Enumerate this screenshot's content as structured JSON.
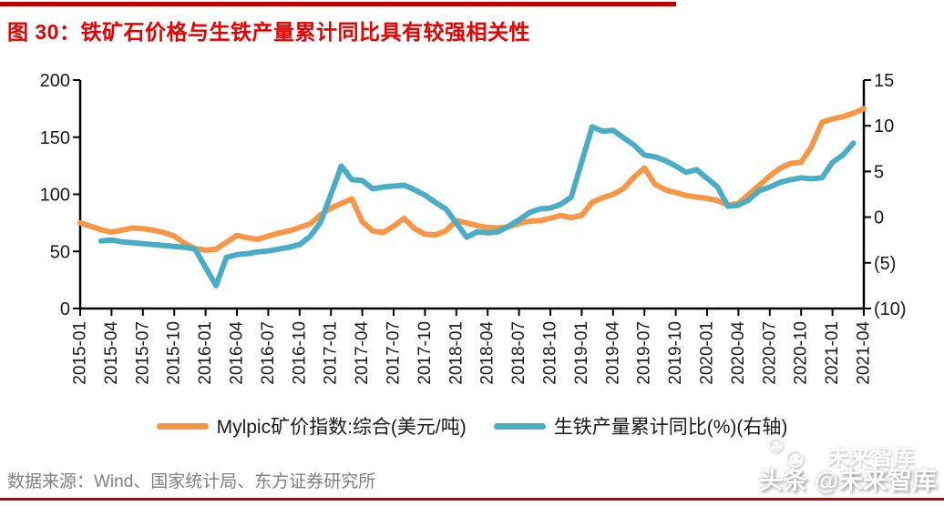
{
  "page": {
    "title": "图 30：铁矿石价格与生铁产量累计同比具有较强相关性",
    "source_note": "数据来源：Wind、国家统计局、东方证券研究所",
    "watermark": {
      "main": "头条 @未来智库",
      "ghost": "未来智库",
      "smiley": "☺"
    },
    "colors": {
      "title_red": "#E60000",
      "rule_red": "#C00000",
      "source_gray": "#808080",
      "axis_black": "#1A1A1A",
      "negative_tick_red": "#FF0000"
    }
  },
  "chart_data": {
    "type": "line",
    "title": "铁矿石价格与生铁产量累计同比具有较强相关性",
    "grid": false,
    "legend_position": "bottom",
    "x_start": "2015-01",
    "x_end": "2021-04",
    "x_months_total": 76,
    "x_tick_labels": [
      "2015-01",
      "2015-04",
      "2015-07",
      "2015-10",
      "2016-01",
      "2016-04",
      "2016-07",
      "2016-10",
      "2017-01",
      "2017-04",
      "2017-07",
      "2017-10",
      "2018-01",
      "2018-04",
      "2018-07",
      "2018-10",
      "2019-01",
      "2019-04",
      "2019-07",
      "2019-10",
      "2020-01",
      "2020-04",
      "2020-07",
      "2020-10",
      "2021-01",
      "2021-04"
    ],
    "left_axis": {
      "min": 0,
      "max": 200,
      "ticks": [
        0,
        50,
        100,
        150,
        200
      ]
    },
    "right_axis": {
      "min": -10,
      "max": 15,
      "ticks": [
        15,
        10,
        5,
        0,
        -5,
        -10
      ],
      "tick_labels": [
        "15",
        "10",
        "5",
        "0",
        "(5)",
        "(10)"
      ]
    },
    "series": [
      {
        "name": "Mylpic矿价指数:综合(美元/吨)",
        "axis": "left",
        "color": "#F79646",
        "values": [
          75,
          72,
          69,
          67,
          68.5,
          70.5,
          70,
          68.5,
          66.5,
          63.5,
          57,
          52.5,
          51,
          52,
          58,
          64,
          62,
          60.5,
          63.5,
          66,
          68,
          71,
          74,
          82,
          88,
          92,
          96,
          76,
          68,
          66.5,
          72,
          79,
          70,
          65,
          64.5,
          68,
          77,
          75,
          72.5,
          71,
          70.5,
          71.5,
          74.5,
          76.5,
          77,
          79,
          81.5,
          79.5,
          81.5,
          93,
          97,
          100,
          105,
          115,
          123,
          109,
          104,
          101.5,
          99,
          97.5,
          96.5,
          94.5,
          90.5,
          92,
          100,
          108,
          116,
          123,
          127,
          128,
          142,
          163,
          166,
          168,
          171,
          175
        ]
      },
      {
        "name": "生铁产量累计同比(%)(右轴)",
        "axis": "right",
        "color": "#4BACC6",
        "values": [
          null,
          null,
          -2.6,
          -2.5,
          -2.7,
          -2.8,
          -2.9,
          -3.0,
          -3.1,
          -3.2,
          -3.3,
          -3.5,
          null,
          -7.5,
          -4.4,
          -4.1,
          -4.0,
          -3.8,
          -3.7,
          -3.5,
          -3.3,
          -3.0,
          -2.1,
          -0.6,
          null,
          5.6,
          4.1,
          4.0,
          3.1,
          3.3,
          3.4,
          3.5,
          3.0,
          2.4,
          1.6,
          0.9,
          null,
          -2.2,
          -1.6,
          -1.7,
          -1.6,
          -1.0,
          -0.3,
          0.5,
          0.9,
          1.0,
          1.4,
          2.2,
          null,
          9.9,
          9.4,
          9.5,
          8.7,
          7.9,
          6.8,
          6.6,
          6.2,
          5.6,
          4.9,
          5.2,
          null,
          3.3,
          1.2,
          1.3,
          1.9,
          2.9,
          3.3,
          3.8,
          4.1,
          4.3,
          4.2,
          4.3,
          6.0,
          6.8,
          8.1,
          null
        ]
      }
    ]
  }
}
